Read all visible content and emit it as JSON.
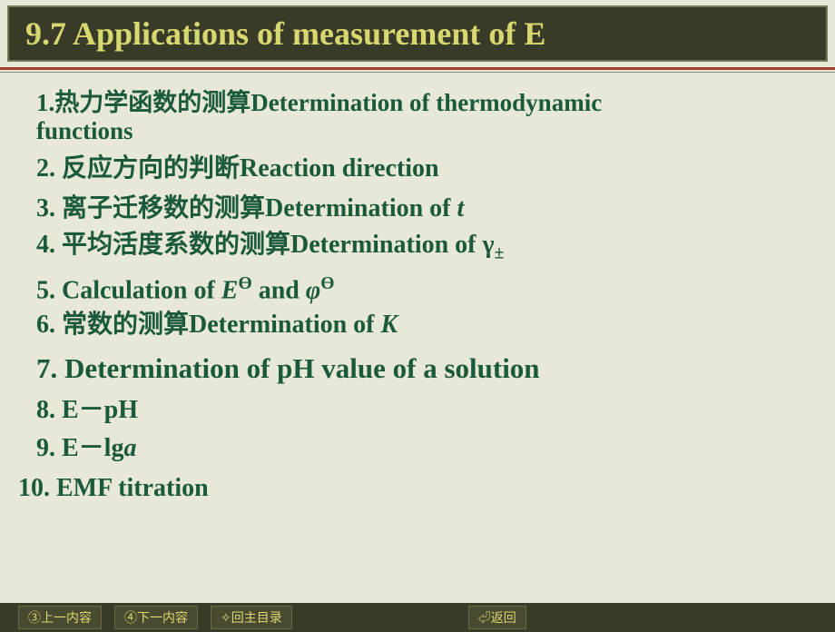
{
  "title": "9.7   Applications of measurement of E",
  "items": {
    "i1_a": "1.热力学函数的测算Determination of thermodynamic",
    "i1_b": "functions",
    "i2": "2. 反应方向的判断Reaction direction",
    "i3_a": "3. 离子迁移数的测算Determination of ",
    "i3_t": "t",
    "i4_a": "4. 平均活度系数的测算Determination of ",
    "i4_g": "γ",
    "i4_pm": "±",
    "i5_a": "5. Calculation of  ",
    "i5_E": "E",
    "i5_th": "Ө",
    "i5_and": " and ",
    "i5_phi": "φ",
    "i6_a": "6. 常数的测算Determination of ",
    "i6_K": "K",
    "i7": "7. Determination of  pH value of a solution",
    "i8": "8. E－pH",
    "i9_a": "9. E－lg",
    "i9_it": "a",
    "i10": "10. EMF titration"
  },
  "footer": {
    "prev": "③上一内容",
    "next": "④下一内容",
    "toc": "✧回主目录",
    "back": "⏎返回"
  },
  "colors": {
    "background": "#e8e8d8",
    "title_bg": "#3a3a28",
    "title_text": "#d8d870",
    "body_text": "#1a5a3a",
    "divider": "#a04030"
  }
}
